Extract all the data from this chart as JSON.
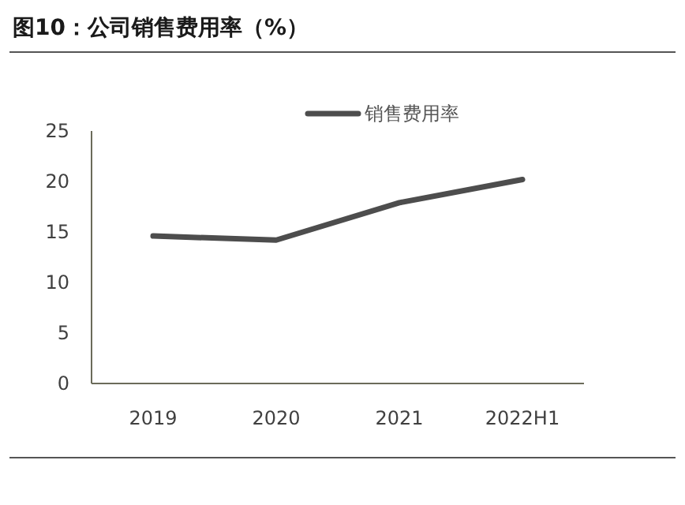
{
  "chart_data": {
    "type": "line",
    "title": "图10：公司销售费用率（%）",
    "categories": [
      "2019",
      "2020",
      "2021",
      "2022H1"
    ],
    "series": [
      {
        "name": "销售费用率",
        "color": "#4d4d4d",
        "values": [
          14.6,
          14.2,
          17.9,
          20.2
        ]
      }
    ],
    "ylim": [
      0,
      25
    ],
    "yticks": [
      0,
      5,
      10,
      15,
      20,
      25
    ],
    "grid": false,
    "legend": "top",
    "marker": "none",
    "line_style": "solid"
  }
}
